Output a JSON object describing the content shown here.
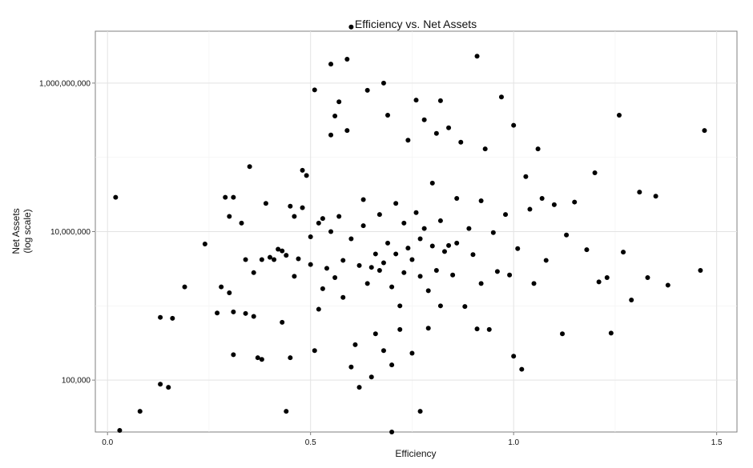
{
  "chart_data": {
    "type": "scatter",
    "title": "Efficiency vs. Net Assets",
    "xlabel": "Efficiency",
    "ylabel": [
      "Net Assets",
      "(log scale)"
    ],
    "xlim": [
      -0.03,
      1.55
    ],
    "ylim": [
      20000,
      5000000000
    ],
    "yscale": "log",
    "grid": true,
    "x_ticks": [
      {
        "value": 0.0,
        "label": "0.0"
      },
      {
        "value": 0.5,
        "label": "0.5"
      },
      {
        "value": 1.0,
        "label": "1.0"
      },
      {
        "value": 1.5,
        "label": "1.5"
      }
    ],
    "y_ticks": [
      {
        "value": 100000,
        "label": "100,000"
      },
      {
        "value": 10000000,
        "label": "10,000,000"
      },
      {
        "value": 1000000000,
        "label": "1,000,000,000"
      }
    ],
    "point_color": "#000000",
    "points": [
      [
        0.02,
        29000000
      ],
      [
        0.03,
        21000
      ],
      [
        0.08,
        38000
      ],
      [
        0.13,
        700000
      ],
      [
        0.13,
        88000
      ],
      [
        0.15,
        80000
      ],
      [
        0.16,
        680000
      ],
      [
        0.19,
        1800000
      ],
      [
        0.24,
        6800000
      ],
      [
        0.27,
        800000
      ],
      [
        0.28,
        1800000
      ],
      [
        0.29,
        29000000
      ],
      [
        0.3,
        1500000
      ],
      [
        0.3,
        16000000
      ],
      [
        0.31,
        29000000
      ],
      [
        0.31,
        220000
      ],
      [
        0.31,
        830000
      ],
      [
        0.33,
        13000000
      ],
      [
        0.34,
        4200000
      ],
      [
        0.34,
        790000
      ],
      [
        0.35,
        75000000
      ],
      [
        0.36,
        2800000
      ],
      [
        0.36,
        720000
      ],
      [
        0.37,
        200000
      ],
      [
        0.38,
        190000
      ],
      [
        0.38,
        4200000
      ],
      [
        0.39,
        24000000
      ],
      [
        0.4,
        4500000
      ],
      [
        0.41,
        4200000
      ],
      [
        0.42,
        5800000
      ],
      [
        0.43,
        5500000
      ],
      [
        0.43,
        600000
      ],
      [
        0.44,
        4800000
      ],
      [
        0.44,
        38000
      ],
      [
        0.45,
        200000
      ],
      [
        0.45,
        22000000
      ],
      [
        0.46,
        2500000
      ],
      [
        0.46,
        16000000
      ],
      [
        0.47,
        4300000
      ],
      [
        0.48,
        67000000
      ],
      [
        0.48,
        21000000
      ],
      [
        0.49,
        57000000
      ],
      [
        0.5,
        3600000
      ],
      [
        0.5,
        8500000
      ],
      [
        0.51,
        250000
      ],
      [
        0.51,
        810000000
      ],
      [
        0.52,
        900000
      ],
      [
        0.52,
        13000000
      ],
      [
        0.53,
        15000000
      ],
      [
        0.53,
        1700000
      ],
      [
        0.54,
        3200000
      ],
      [
        0.55,
        200000000
      ],
      [
        0.55,
        10000000
      ],
      [
        0.55,
        1800000000
      ],
      [
        0.56,
        360000000
      ],
      [
        0.56,
        2400000
      ],
      [
        0.57,
        560000000
      ],
      [
        0.57,
        16000000
      ],
      [
        0.58,
        4100000
      ],
      [
        0.58,
        1300000
      ],
      [
        0.59,
        230000000
      ],
      [
        0.59,
        2100000000
      ],
      [
        0.6,
        5700000000
      ],
      [
        0.6,
        150000
      ],
      [
        0.6,
        8000000
      ],
      [
        0.61,
        300000
      ],
      [
        0.62,
        3500000
      ],
      [
        0.62,
        80000
      ],
      [
        0.63,
        27000000
      ],
      [
        0.63,
        12000000
      ],
      [
        0.64,
        2000000
      ],
      [
        0.64,
        800000000
      ],
      [
        0.65,
        3300000
      ],
      [
        0.65,
        110000
      ],
      [
        0.66,
        5000000
      ],
      [
        0.66,
        420000
      ],
      [
        0.67,
        17000000
      ],
      [
        0.67,
        3000000
      ],
      [
        0.68,
        3800000
      ],
      [
        0.68,
        1000000000
      ],
      [
        0.68,
        250000
      ],
      [
        0.69,
        370000000
      ],
      [
        0.69,
        7000000
      ],
      [
        0.7,
        1800000
      ],
      [
        0.7,
        160000
      ],
      [
        0.7,
        20000
      ],
      [
        0.71,
        24000000
      ],
      [
        0.71,
        5000000
      ],
      [
        0.72,
        1000000
      ],
      [
        0.72,
        480000
      ],
      [
        0.73,
        13000000
      ],
      [
        0.73,
        2800000
      ],
      [
        0.74,
        170000000
      ],
      [
        0.74,
        6000000
      ],
      [
        0.75,
        4200000
      ],
      [
        0.75,
        230000
      ],
      [
        0.76,
        590000000
      ],
      [
        0.76,
        18000000
      ],
      [
        0.77,
        8000000
      ],
      [
        0.77,
        2500000
      ],
      [
        0.77,
        38000
      ],
      [
        0.78,
        320000000
      ],
      [
        0.78,
        11000000
      ],
      [
        0.79,
        1600000
      ],
      [
        0.79,
        500000
      ],
      [
        0.8,
        45000000
      ],
      [
        0.8,
        6400000
      ],
      [
        0.81,
        210000000
      ],
      [
        0.81,
        3000000
      ],
      [
        0.82,
        580000000
      ],
      [
        0.82,
        14000000
      ],
      [
        0.82,
        1000000
      ],
      [
        0.83,
        5400000
      ],
      [
        0.84,
        250000000
      ],
      [
        0.84,
        6500000
      ],
      [
        0.85,
        2600000
      ],
      [
        0.86,
        28000000
      ],
      [
        0.86,
        7000000
      ],
      [
        0.87,
        160000000
      ],
      [
        0.88,
        980000
      ],
      [
        0.89,
        11000000
      ],
      [
        0.9,
        4900000
      ],
      [
        0.91,
        2300000000
      ],
      [
        0.91,
        490000
      ],
      [
        0.92,
        2000000
      ],
      [
        0.92,
        26000000
      ],
      [
        0.93,
        130000000
      ],
      [
        0.94,
        480000
      ],
      [
        0.95,
        9700000
      ],
      [
        0.96,
        2900000
      ],
      [
        0.97,
        650000000
      ],
      [
        0.98,
        17000000
      ],
      [
        0.99,
        2600000
      ],
      [
        1.0,
        210000
      ],
      [
        1.0,
        270000000
      ],
      [
        1.01,
        5900000
      ],
      [
        1.02,
        140000
      ],
      [
        1.03,
        55000000
      ],
      [
        1.04,
        20000000
      ],
      [
        1.05,
        2000000
      ],
      [
        1.06,
        130000000
      ],
      [
        1.07,
        28000000
      ],
      [
        1.08,
        4100000
      ],
      [
        1.1,
        23000000
      ],
      [
        1.12,
        420000
      ],
      [
        1.13,
        9000000
      ],
      [
        1.15,
        25000000
      ],
      [
        1.18,
        5700000
      ],
      [
        1.2,
        62000000
      ],
      [
        1.21,
        2100000
      ],
      [
        1.23,
        2400000
      ],
      [
        1.24,
        430000
      ],
      [
        1.26,
        370000000
      ],
      [
        1.27,
        5300000
      ],
      [
        1.29,
        1200000
      ],
      [
        1.31,
        34000000
      ],
      [
        1.33,
        2400000
      ],
      [
        1.35,
        30000000
      ],
      [
        1.38,
        1900000
      ],
      [
        1.46,
        3000000
      ],
      [
        1.47,
        230000000
      ]
    ]
  }
}
